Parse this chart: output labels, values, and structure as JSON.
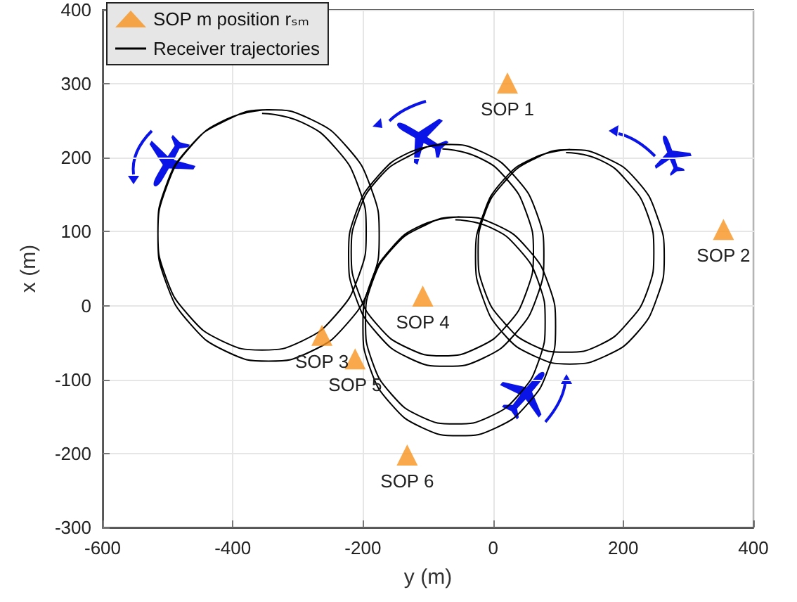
{
  "chart_data": {
    "type": "line",
    "xlabel": "y (m)",
    "ylabel": "x (m)",
    "xlim": [
      -600,
      400
    ],
    "xticks": [
      -600,
      -400,
      -200,
      0,
      200,
      400
    ],
    "ylim": [
      -300,
      400
    ],
    "yticks": [
      -300,
      -200,
      -100,
      0,
      100,
      200,
      300,
      400
    ],
    "grid": true,
    "legend": "top left",
    "line_style": "solid",
    "series": [
      {
        "name": "SOP m position rₛₘ",
        "type": "scatter",
        "marker": "triangle",
        "color": "#f7931e",
        "x": [
          22,
          354,
          -263,
          -108,
          -212,
          -132
        ],
        "values": [
          301,
          103,
          -40,
          13,
          -72,
          -202
        ]
      },
      {
        "name": "Receiver trajectories",
        "color": "#000000",
        "x": [
          -355,
          -294,
          -242,
          -207,
          -195,
          -207,
          -242,
          -294,
          -355,
          -416,
          -468,
          -503,
          -515,
          -503,
          -468,
          -416,
          -345,
          -280,
          -225,
          -188,
          -175,
          -188,
          -225,
          -280,
          -345,
          -410,
          -465,
          -502,
          -515,
          -502,
          -465,
          -410,
          -345
        ],
        "values": [
          260,
          248,
          213,
          161,
          100,
          39,
          -13,
          -48,
          -60,
          -48,
          -13,
          39,
          100,
          161,
          213,
          248,
          265,
          252,
          215,
          160,
          95,
          30,
          -25,
          -62,
          -75,
          -62,
          -25,
          30,
          95,
          160,
          215,
          252,
          265
        ]
      },
      {
        "color": "#000000",
        "x": [
          -78,
          -24,
          21,
          51,
          62,
          51,
          21,
          -24,
          -78,
          -132,
          -177,
          -207,
          -218,
          -207,
          -177,
          -132,
          -72,
          -15,
          34,
          67,
          78,
          67,
          34,
          -15,
          -72,
          -129,
          -178,
          -211,
          -222,
          -211,
          -178,
          -129,
          -72
        ],
        "values": [
          212,
          201,
          171,
          126,
          72,
          18,
          -27,
          -57,
          -68,
          -57,
          -27,
          18,
          72,
          126,
          171,
          201,
          218,
          207,
          174,
          125,
          68,
          11,
          -38,
          -71,
          -82,
          -71,
          -38,
          11,
          68,
          125,
          174,
          207,
          218
        ]
      },
      {
        "color": "#000000",
        "x": [
          112,
          164,
          207,
          237,
          247,
          237,
          207,
          164,
          112,
          60,
          17,
          -13,
          -23,
          -13,
          17,
          60,
          118,
          173,
          221,
          252,
          263,
          252,
          221,
          173,
          118,
          63,
          15,
          -16,
          -27,
          -16,
          15,
          63,
          118
        ],
        "values": [
          207,
          197,
          167,
          124,
          72,
          20,
          -23,
          -53,
          -63,
          -53,
          -23,
          20,
          72,
          124,
          167,
          197,
          211,
          200,
          169,
          121,
          66,
          11,
          -37,
          -68,
          -79,
          -68,
          -37,
          11,
          66,
          121,
          169,
          200,
          211
        ]
      },
      {
        "color": "#000000",
        "x": [
          -58,
          -5,
          40,
          70,
          80,
          70,
          40,
          -5,
          -58,
          -111,
          -156,
          -186,
          -196,
          -186,
          -156,
          -111,
          -52,
          5,
          53,
          85,
          96,
          85,
          53,
          5,
          -52,
          -109,
          -157,
          -189,
          -200,
          -189,
          -157,
          -109,
          -52
        ],
        "values": [
          116,
          106,
          76,
          31,
          -22,
          -75,
          -120,
          -150,
          -160,
          -150,
          -120,
          -75,
          -22,
          31,
          76,
          106,
          120,
          109,
          77,
          29,
          -28,
          -85,
          -133,
          -165,
          -176,
          -165,
          -133,
          -85,
          -28,
          29,
          77,
          109,
          120
        ]
      }
    ],
    "annotations": [
      {
        "text": "SOP 1",
        "x": 22,
        "y": 301
      },
      {
        "text": "SOP 2",
        "x": 354,
        "y": 103
      },
      {
        "text": "SOP 3",
        "x": -263,
        "y": -40
      },
      {
        "text": "SOP 4",
        "x": -108,
        "y": 13
      },
      {
        "text": "SOP 5",
        "x": -212,
        "y": -72
      },
      {
        "text": "SOP 6",
        "x": -132,
        "y": -202
      }
    ]
  }
}
